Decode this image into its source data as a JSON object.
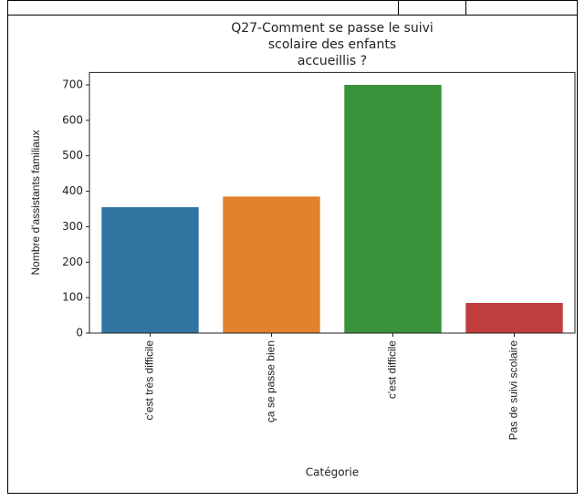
{
  "chart_data": {
    "type": "bar",
    "title": [
      "Q27-Comment se passe le suivi",
      "scolaire des enfants",
      "accueillis ?"
    ],
    "x_label": "Catégorie",
    "y_label": "Nombre d'assistants familiaux",
    "categories": [
      "c'est très difficile",
      "ça se passe bien",
      "c'est difficile",
      "Pas de suivi scolaire"
    ],
    "values": [
      355,
      385,
      700,
      85
    ],
    "colors": [
      "#3274a1",
      "#e1812c",
      "#3a923a",
      "#c03d3e"
    ],
    "ylim": [
      0,
      735
    ],
    "yticks": [
      0,
      100,
      200,
      300,
      400,
      500,
      600,
      700
    ],
    "grid": false
  }
}
